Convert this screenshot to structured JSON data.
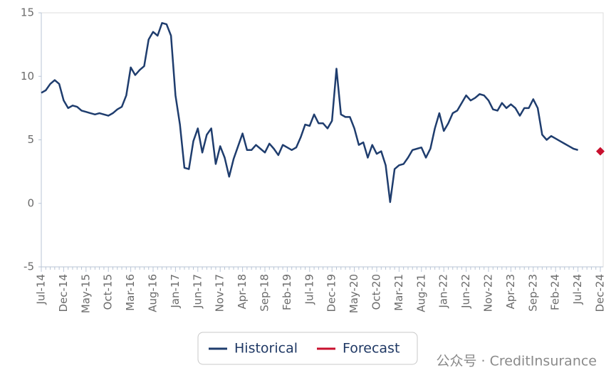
{
  "chart_data": {
    "type": "line",
    "categories": [
      "Jul-14",
      null,
      null,
      null,
      null,
      "Dec-14",
      null,
      null,
      null,
      null,
      "May-15",
      null,
      null,
      null,
      null,
      "Oct-15",
      null,
      null,
      null,
      null,
      "Mar-16",
      null,
      null,
      null,
      null,
      "Aug-16",
      null,
      null,
      null,
      null,
      "Jan-17",
      null,
      null,
      null,
      null,
      "Jun-17",
      null,
      null,
      null,
      null,
      "Nov-17",
      null,
      null,
      null,
      null,
      "Apr-18",
      null,
      null,
      null,
      null,
      "Sep-18",
      null,
      null,
      null,
      null,
      "Feb-19",
      null,
      null,
      null,
      null,
      "Jul-19",
      null,
      null,
      null,
      null,
      "Dec-19",
      null,
      null,
      null,
      null,
      "May-20",
      null,
      null,
      null,
      null,
      "Oct-20",
      null,
      null,
      null,
      null,
      "Mar-21",
      null,
      null,
      null,
      null,
      "Aug-21",
      null,
      null,
      null,
      null,
      "Jan-22",
      null,
      null,
      null,
      null,
      "Jun-22",
      null,
      null,
      null,
      null,
      "Nov-22",
      null,
      null,
      null,
      null,
      "Apr-23",
      null,
      null,
      null,
      null,
      "Sep-23",
      null,
      null,
      null,
      null,
      "Feb-24",
      null,
      null,
      null,
      null,
      "Jul-24",
      null,
      null,
      null,
      null,
      "Dec-24"
    ],
    "series": [
      {
        "name": "Historical",
        "color": "#1f3d6e",
        "values": [
          8.7,
          8.9,
          9.4,
          9.7,
          9.4,
          8.1,
          7.5,
          7.7,
          7.6,
          7.3,
          7.2,
          7.1,
          7.0,
          7.1,
          7.0,
          6.9,
          7.1,
          7.4,
          7.6,
          8.5,
          10.7,
          10.1,
          10.5,
          10.8,
          12.9,
          13.5,
          13.2,
          14.2,
          14.1,
          13.2,
          8.5,
          6.2,
          2.8,
          2.7,
          4.9,
          5.9,
          4.0,
          5.4,
          5.9,
          3.1,
          4.5,
          3.6,
          2.1,
          3.5,
          4.5,
          5.5,
          4.2,
          4.2,
          4.6,
          4.3,
          4.0,
          4.7,
          4.3,
          3.8,
          4.6,
          4.4,
          4.2,
          4.4,
          5.2,
          6.2,
          6.1,
          7.0,
          6.3,
          6.3,
          5.9,
          6.5,
          10.6,
          7.0,
          6.8,
          6.8,
          5.9,
          4.6,
          4.8,
          3.6,
          4.6,
          3.9,
          4.1,
          3.0,
          0.1,
          2.7,
          3.0,
          3.1,
          3.6,
          4.2,
          4.3,
          4.4,
          3.6,
          4.3,
          5.9,
          7.1,
          5.7,
          6.3,
          7.1,
          7.3,
          7.9,
          8.5,
          8.1,
          8.3,
          8.6,
          8.5,
          8.1,
          7.4,
          7.3,
          7.9,
          7.5,
          7.8,
          7.5,
          6.9,
          7.5,
          7.5,
          8.2,
          7.5,
          5.4,
          5.0,
          5.3,
          5.1,
          4.9,
          4.7,
          4.5,
          4.3,
          4.2,
          null,
          null,
          null,
          null,
          null
        ]
      },
      {
        "name": "Forecast",
        "color": "#c8102e",
        "values": [
          null,
          null,
          null,
          null,
          null,
          null,
          null,
          null,
          null,
          null,
          null,
          null,
          null,
          null,
          null,
          null,
          null,
          null,
          null,
          null,
          null,
          null,
          null,
          null,
          null,
          null,
          null,
          null,
          null,
          null,
          null,
          null,
          null,
          null,
          null,
          null,
          null,
          null,
          null,
          null,
          null,
          null,
          null,
          null,
          null,
          null,
          null,
          null,
          null,
          null,
          null,
          null,
          null,
          null,
          null,
          null,
          null,
          null,
          null,
          null,
          null,
          null,
          null,
          null,
          null,
          null,
          null,
          null,
          null,
          null,
          null,
          null,
          null,
          null,
          null,
          null,
          null,
          null,
          null,
          null,
          null,
          null,
          null,
          null,
          null,
          null,
          null,
          null,
          null,
          null,
          null,
          null,
          null,
          null,
          null,
          null,
          null,
          null,
          null,
          null,
          null,
          null,
          null,
          null,
          null,
          null,
          null,
          null,
          null,
          null,
          null,
          null,
          null,
          null,
          null,
          null,
          null,
          null,
          null,
          null,
          null,
          null,
          null,
          null,
          null,
          4.1
        ]
      }
    ],
    "ylim": [
      -5,
      15
    ],
    "yticks": [
      -5,
      0,
      5,
      10,
      15
    ],
    "grid": false,
    "legend": "bottom",
    "watermark": "公众号 · CreditInsurance"
  }
}
